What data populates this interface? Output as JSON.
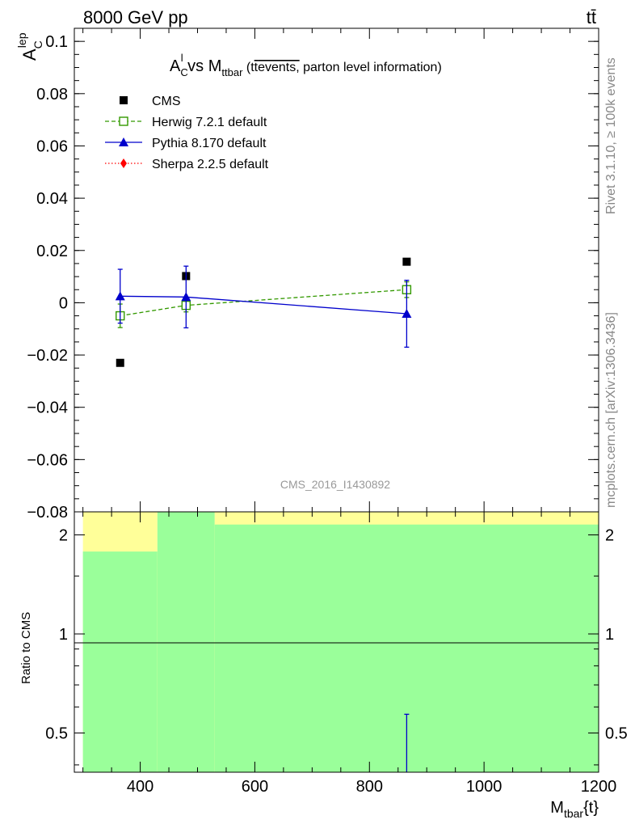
{
  "header": {
    "energy_label": "8000 GeV pp",
    "process_label": "tt̄"
  },
  "side_text": {
    "rivet": "Rivet 3.1.10, ≥ 100k events",
    "mcplots": "mcplots.cern.ch [arXiv:1306.3436]"
  },
  "chart_data": [
    {
      "type": "scatter",
      "title_parts": [
        "A",
        "C",
        "l",
        " vs M",
        "ttbar",
        " (t",
        "t",
        "events,",
        " parton level information)"
      ],
      "ylabel_parts": [
        "A",
        "C",
        "lep"
      ],
      "watermark": "CMS_2016_I1430892",
      "xlim": [
        285,
        1200
      ],
      "ylim": [
        -0.08,
        0.105
      ],
      "y_ticks": [
        -0.08,
        -0.06,
        -0.04,
        -0.02,
        0,
        0.02,
        0.04,
        0.06,
        0.08,
        0.1
      ],
      "y_tick_labels": [
        "−0.08",
        "−0.06",
        "−0.04",
        "−0.02",
        "0",
        "0.02",
        "0.04",
        "0.06",
        "0.08",
        "0.1"
      ],
      "legend_position": "top-left",
      "series": [
        {
          "name": "CMS",
          "style": "data",
          "color": "#000000",
          "marker": "square-filled",
          "x": [
            365,
            480,
            865
          ],
          "y": [
            -0.023,
            0.0102,
            0.0157
          ],
          "xerr": [
            [
              300,
              430
            ],
            [
              430,
              530
            ],
            [
              530,
              1200
            ]
          ]
        },
        {
          "name": "Herwig 7.2.1 default",
          "style": "dashed",
          "color": "#339900",
          "marker": "square-open",
          "x": [
            365,
            480,
            865
          ],
          "y": [
            -0.005,
            -0.001,
            0.005
          ],
          "yerr": [
            0.0045,
            0.0025,
            0.003
          ]
        },
        {
          "name": "Pythia 8.170 default",
          "style": "solid",
          "color": "#0000cc",
          "marker": "triangle-filled",
          "x": [
            365,
            480,
            865
          ],
          "y": [
            0.0025,
            0.0022,
            -0.0042
          ],
          "yerr": [
            0.0103,
            0.0118,
            0.0128
          ]
        },
        {
          "name": "Sherpa 2.2.5 default",
          "style": "dotted",
          "color": "#ff0000",
          "marker": "diamond-filled",
          "x": [],
          "y": []
        }
      ]
    },
    {
      "type": "bar",
      "ylabel": "Ratio to CMS",
      "xlabel_parts": [
        "M",
        "tbar",
        "{t}"
      ],
      "log_y": true,
      "xlim": [
        285,
        1200
      ],
      "ylim": [
        0.38,
        2.35
      ],
      "x_ticks": [
        400,
        600,
        800,
        1000,
        1200
      ],
      "x_tick_labels": [
        "400",
        "600",
        "800",
        "1000",
        "1200"
      ],
      "y_ticks": [
        0.5,
        1,
        2
      ],
      "y_tick_labels": [
        "0.5",
        "1",
        "2"
      ],
      "reference_line": 1,
      "bands": [
        {
          "x": [
            300,
            430
          ],
          "green": [
            0.38,
            1.78
          ],
          "yellow": [
            0.38,
            2.35
          ]
        },
        {
          "x": [
            430,
            530
          ],
          "green": [
            0.38,
            2.35
          ],
          "yellow": [
            0.38,
            2.35
          ]
        },
        {
          "x": [
            530,
            1200
          ],
          "green": [
            0.38,
            2.15
          ],
          "yellow": [
            0.38,
            2.35
          ]
        }
      ],
      "band_colors": {
        "green": "#9aff9a",
        "yellow": "#ffff99"
      },
      "ratio_points": [
        {
          "series": "Pythia 8.170 default",
          "color": "#0000cc",
          "x": 865,
          "y_low": 0.38,
          "y_high": 0.57
        }
      ]
    }
  ]
}
